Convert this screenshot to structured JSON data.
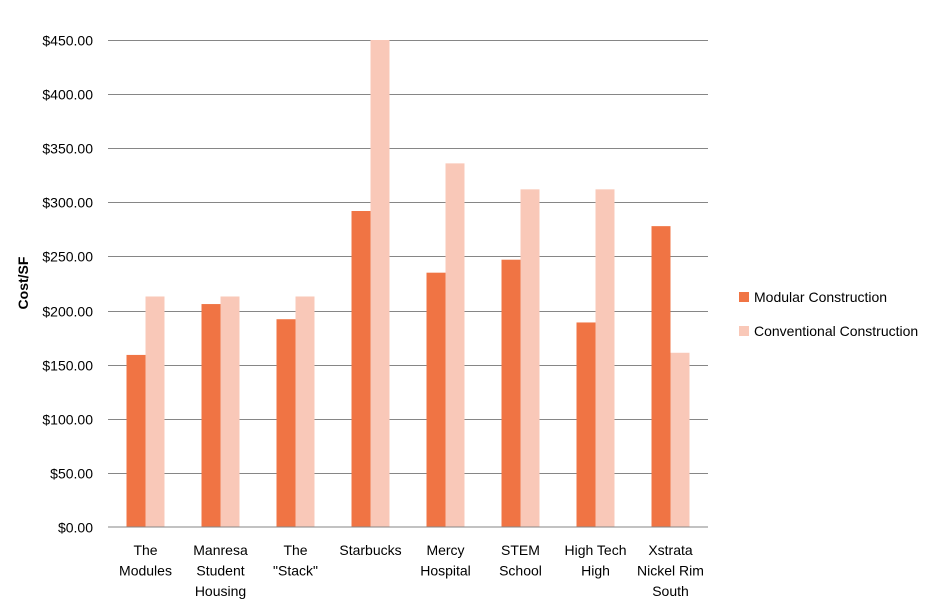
{
  "chart_data": {
    "type": "bar",
    "title": "",
    "xlabel": "",
    "ylabel": "Cost/SF",
    "ylim": [
      0,
      450
    ],
    "yticks": [
      0,
      50,
      100,
      150,
      200,
      250,
      300,
      350,
      400,
      450
    ],
    "ytick_labels": [
      "$0.00",
      "$50.00",
      "$100.00",
      "$150.00",
      "$200.00",
      "$250.00",
      "$300.00",
      "$350.00",
      "$400.00",
      "$450.00"
    ],
    "grid": true,
    "legend_position": "right",
    "categories": [
      [
        "The",
        "Modules"
      ],
      [
        "Manresa",
        "Student",
        "Housing"
      ],
      [
        "The",
        "\"Stack\""
      ],
      [
        "Starbucks"
      ],
      [
        "Mercy",
        "Hospital"
      ],
      [
        "STEM",
        "School"
      ],
      [
        "High Tech",
        "High"
      ],
      [
        "Xstrata",
        "Nickel Rim",
        "South"
      ]
    ],
    "series": [
      {
        "name": "Modular Construction",
        "color": "#f07444",
        "values": [
          159,
          206,
          192,
          292,
          235,
          247,
          189,
          278
        ]
      },
      {
        "name": "Conventional Construction",
        "color": "#f9c8b8",
        "values": [
          213,
          213,
          213,
          450,
          336,
          312,
          312,
          161
        ]
      }
    ]
  }
}
